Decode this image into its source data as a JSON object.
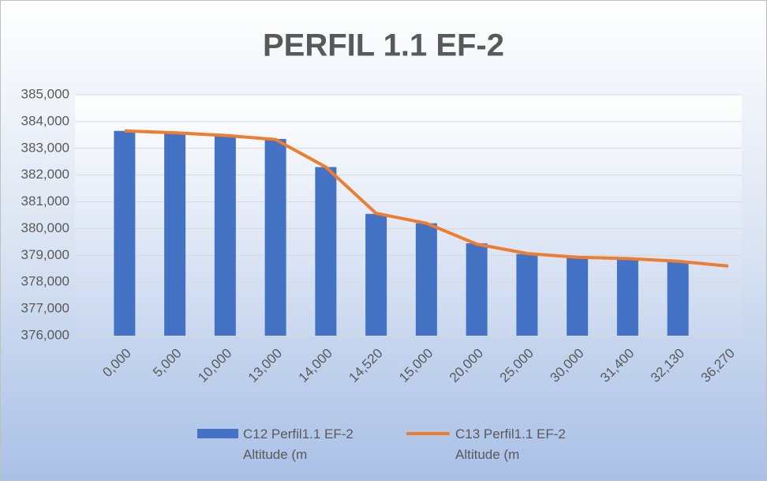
{
  "chart_data": {
    "type": "combo",
    "title": "PERFIL 1.1 EF-2",
    "categories": [
      "0,000",
      "5,000",
      "10,000",
      "13,000",
      "14,000",
      "14,520",
      "15,000",
      "20,000",
      "25,000",
      "30,000",
      "31,400",
      "32,130",
      "36,270"
    ],
    "series": [
      {
        "name": "C12 Perfil1.1 EF-2 Altitude (m",
        "type": "bar",
        "color": "#4472c4",
        "values": [
          383.65,
          383.6,
          383.5,
          383.35,
          382.3,
          380.55,
          380.2,
          379.45,
          379.05,
          378.9,
          378.85,
          378.8,
          null
        ]
      },
      {
        "name": "C13 Perfil1.1 EF-2 Altitude (m",
        "type": "line",
        "color": "#ed7d31",
        "values": [
          383.65,
          383.58,
          383.48,
          383.33,
          382.3,
          380.57,
          380.2,
          379.42,
          379.07,
          378.93,
          378.88,
          378.78,
          378.6
        ]
      }
    ],
    "ylim": [
      376,
      385
    ],
    "yticks": [
      {
        "value": 376,
        "label": "376,000"
      },
      {
        "value": 377,
        "label": "377,000"
      },
      {
        "value": 378,
        "label": "378,000"
      },
      {
        "value": 379,
        "label": "379,000"
      },
      {
        "value": 380,
        "label": "380,000"
      },
      {
        "value": 381,
        "label": "381,000"
      },
      {
        "value": 382,
        "label": "382,000"
      },
      {
        "value": 383,
        "label": "383,000"
      },
      {
        "value": 384,
        "label": "384,000"
      },
      {
        "value": 385,
        "label": "385,000"
      }
    ],
    "grid": true,
    "legend": "bottom"
  }
}
